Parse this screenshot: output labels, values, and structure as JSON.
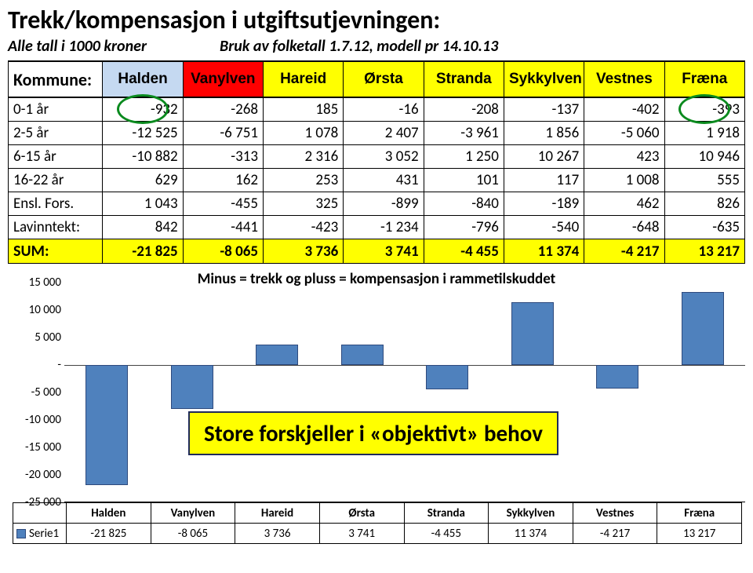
{
  "title": "Trekk/kompensasjon i utgiftsutjevningen:",
  "subtitle_left": "Alle tall i 1000 kroner",
  "subtitle_right": "Bruk av folketall 1.7.12, modell pr 14.10.13",
  "header_label": "Kommune:",
  "municipalities": [
    {
      "name": "Halden",
      "bg": "#c5d9f1"
    },
    {
      "name": "Vanylven",
      "bg": "#ff0000"
    },
    {
      "name": "Hareid",
      "bg": "#ffff00"
    },
    {
      "name": "Ørsta",
      "bg": "#ffff00"
    },
    {
      "name": "Stranda",
      "bg": "#ffff00"
    },
    {
      "name": "Sykkylven",
      "bg": "#ffff00"
    },
    {
      "name": "Vestnes",
      "bg": "#ffff00"
    },
    {
      "name": "Fræna",
      "bg": "#ffff00"
    }
  ],
  "rows": [
    {
      "label": "0-1 år",
      "vals": [
        "-932",
        "-268",
        "185",
        "-16",
        "-208",
        "-137",
        "-402",
        "-393"
      ]
    },
    {
      "label": "2-5 år",
      "vals": [
        "-12 525",
        "-6 751",
        "1 078",
        "2 407",
        "-3 961",
        "1 856",
        "-5 060",
        "1 918"
      ]
    },
    {
      "label": "6-15 år",
      "vals": [
        "-10 882",
        "-313",
        "2 316",
        "3 052",
        "1 250",
        "10 267",
        "423",
        "10 946"
      ]
    },
    {
      "label": "16-22 år",
      "vals": [
        "629",
        "162",
        "253",
        "431",
        "101",
        "117",
        "1 008",
        "555"
      ]
    },
    {
      "label": "Ensl. Fors.",
      "vals": [
        "1 043",
        "-455",
        "325",
        "-899",
        "-840",
        "-189",
        "462",
        "826"
      ]
    },
    {
      "label": "Lavinntekt:",
      "vals": [
        "842",
        "-441",
        "-423",
        "-1 234",
        "-796",
        "-540",
        "-648",
        "-635"
      ]
    }
  ],
  "sum_label": "SUM:",
  "sum_vals": [
    "-21 825",
    "-8 065",
    "3 736",
    "3 741",
    "-4 455",
    "11 374",
    "-4 217",
    "13 217"
  ],
  "sum_nums": [
    -21825,
    -8065,
    3736,
    3741,
    -4455,
    11374,
    -4217,
    13217
  ],
  "circled_cells": [
    {
      "row": 0,
      "col": 0
    },
    {
      "row": 0,
      "col": 7
    }
  ],
  "chart": {
    "title": "Minus = trekk og pluss = kompensasjon i rammetilskuddet",
    "ylim": [
      -25000,
      15000
    ],
    "yticks": [
      {
        "v": 15000,
        "label": "15 000"
      },
      {
        "v": 10000,
        "label": "10 000"
      },
      {
        "v": 5000,
        "label": "5 000"
      },
      {
        "v": 0,
        "label": "-"
      },
      {
        "v": -5000,
        "label": "-5 000"
      },
      {
        "v": -10000,
        "label": "-10 000"
      },
      {
        "v": -15000,
        "label": "-15 000"
      },
      {
        "v": -20000,
        "label": "-20 000"
      },
      {
        "v": -25000,
        "label": "-25 000"
      }
    ],
    "bar_color": "#4f81bd",
    "bar_border": "#2e4a7d",
    "series_label": "Serie1",
    "callout": "Store forskjeller i «objektivt» behov"
  }
}
